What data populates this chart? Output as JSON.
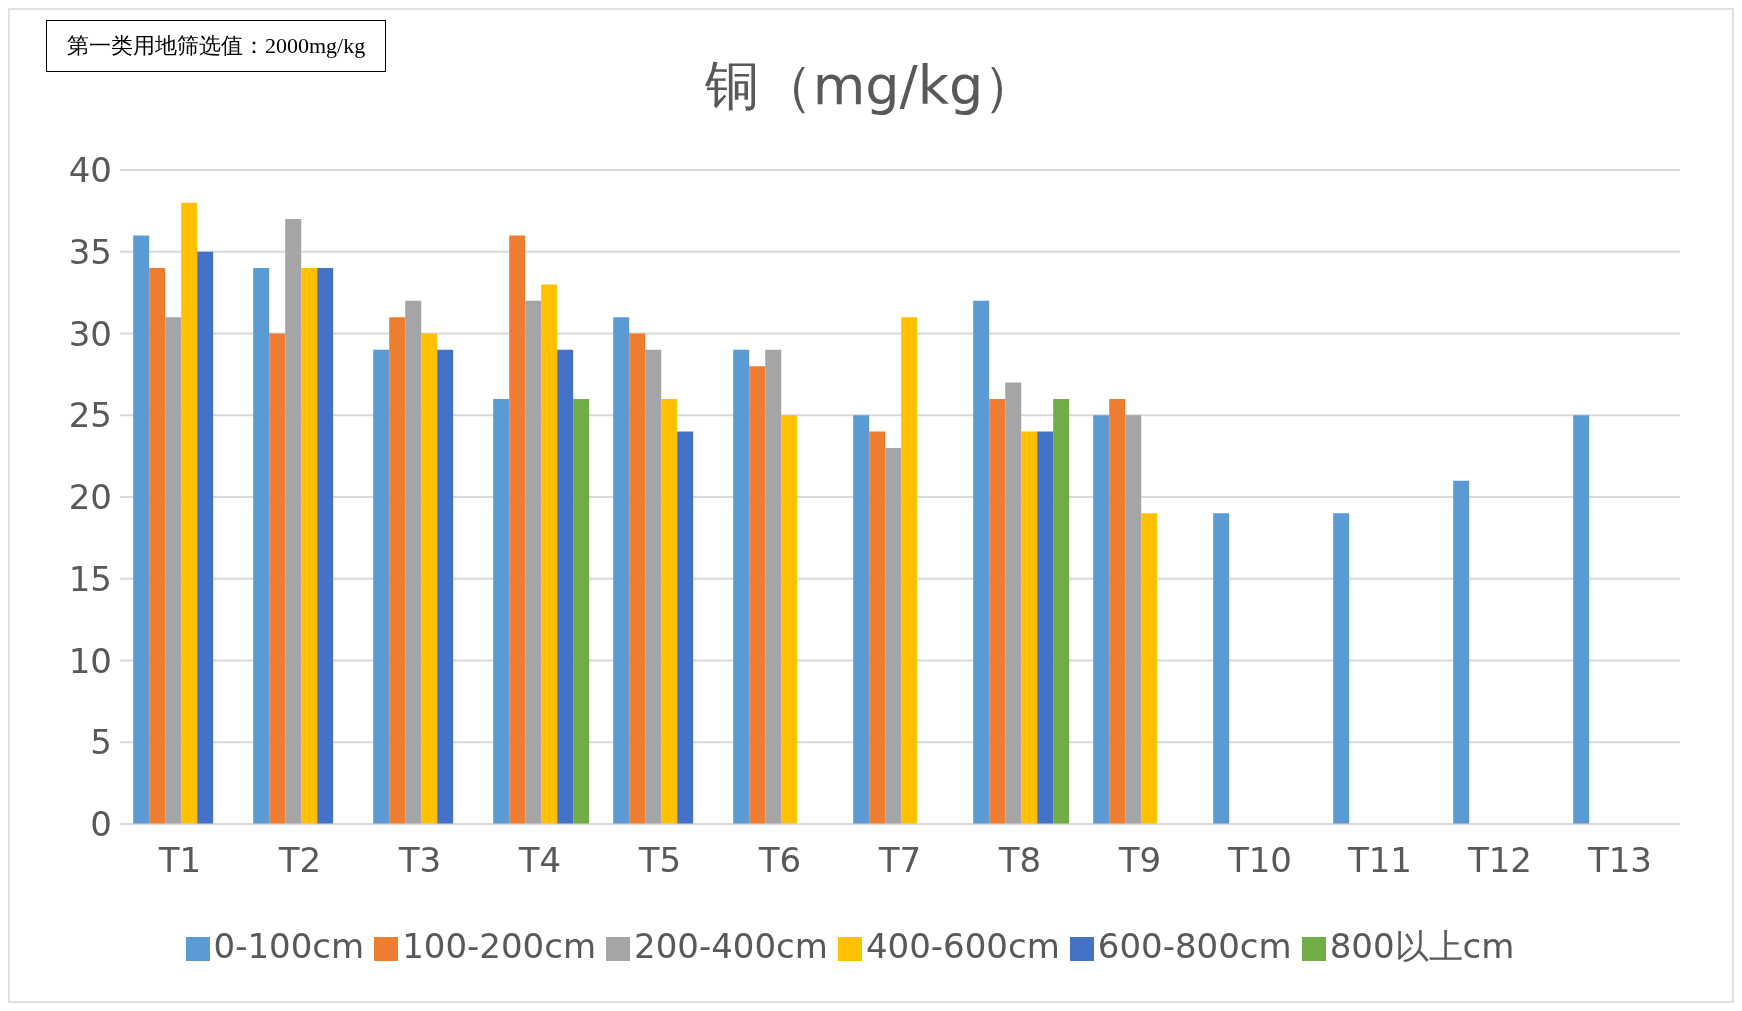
{
  "chart_data": {
    "type": "bar",
    "title": "铜（mg/kg）",
    "annotations": [
      "第一类用地筛选值：2000mg/kg"
    ],
    "categories": [
      "T1",
      "T2",
      "T3",
      "T4",
      "T5",
      "T6",
      "T7",
      "T8",
      "T9",
      "T10",
      "T11",
      "T12",
      "T13"
    ],
    "series": [
      {
        "name": "0-100cm",
        "color": "#5b9bd5",
        "values": [
          36,
          34,
          29,
          26,
          31,
          29,
          25,
          32,
          25,
          19,
          19,
          21,
          25
        ]
      },
      {
        "name": "100-200cm",
        "color": "#ed7d31",
        "values": [
          34,
          30,
          31,
          36,
          30,
          28,
          24,
          26,
          26,
          null,
          null,
          null,
          null
        ]
      },
      {
        "name": "200-400cm",
        "color": "#a5a5a5",
        "values": [
          31,
          37,
          32,
          32,
          29,
          29,
          23,
          27,
          25,
          null,
          null,
          null,
          null
        ]
      },
      {
        "name": "400-600cm",
        "color": "#ffc000",
        "values": [
          38,
          34,
          30,
          33,
          26,
          25,
          31,
          24,
          19,
          null,
          null,
          null,
          null
        ]
      },
      {
        "name": "600-800cm",
        "color": "#4472c4",
        "values": [
          35,
          34,
          29,
          29,
          24,
          null,
          null,
          24,
          null,
          null,
          null,
          null,
          null
        ]
      },
      {
        "name": "800以上cm",
        "color": "#70ad47",
        "values": [
          null,
          null,
          null,
          26,
          null,
          null,
          null,
          26,
          null,
          null,
          null,
          null,
          null
        ]
      }
    ],
    "ylim": [
      0,
      40
    ],
    "yticks": [
      0,
      5,
      10,
      15,
      20,
      25,
      30,
      35,
      40
    ],
    "grid": "y",
    "legend": "bottom"
  }
}
